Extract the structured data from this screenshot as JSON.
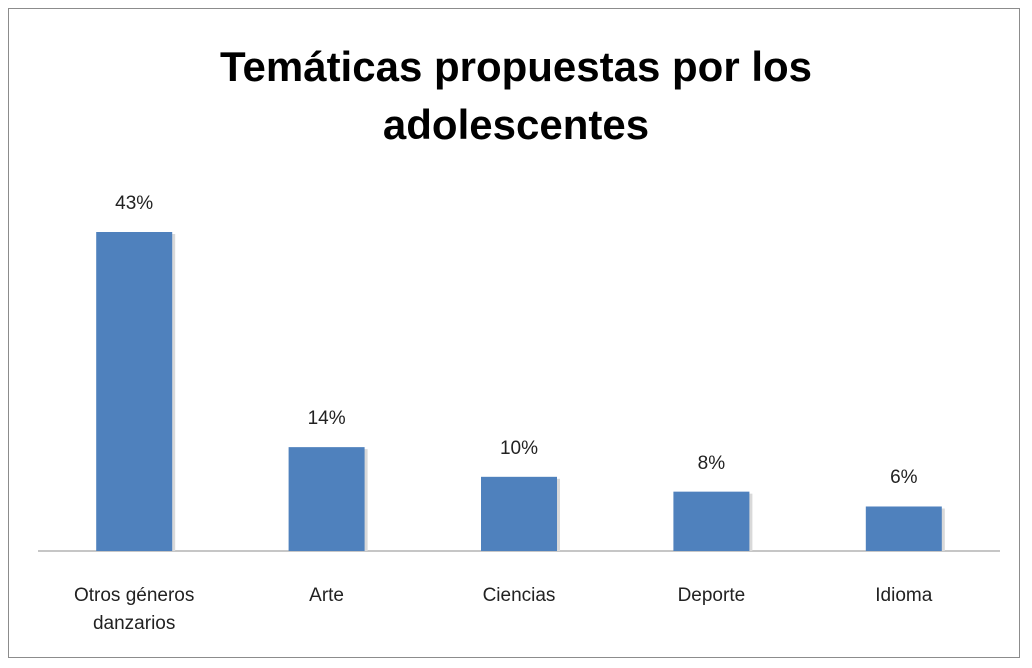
{
  "chart_data": {
    "type": "bar",
    "title": "Temáticas propuestas por los adolescentes",
    "categories": [
      "Otros géneros danzarios",
      "Arte",
      "Ciencias",
      "Deporte",
      "Idioma"
    ],
    "values": [
      43,
      14,
      10,
      8,
      6
    ],
    "value_labels": [
      "43%",
      "14%",
      "10%",
      "8%",
      "6%"
    ],
    "color": "#4f81bd"
  }
}
